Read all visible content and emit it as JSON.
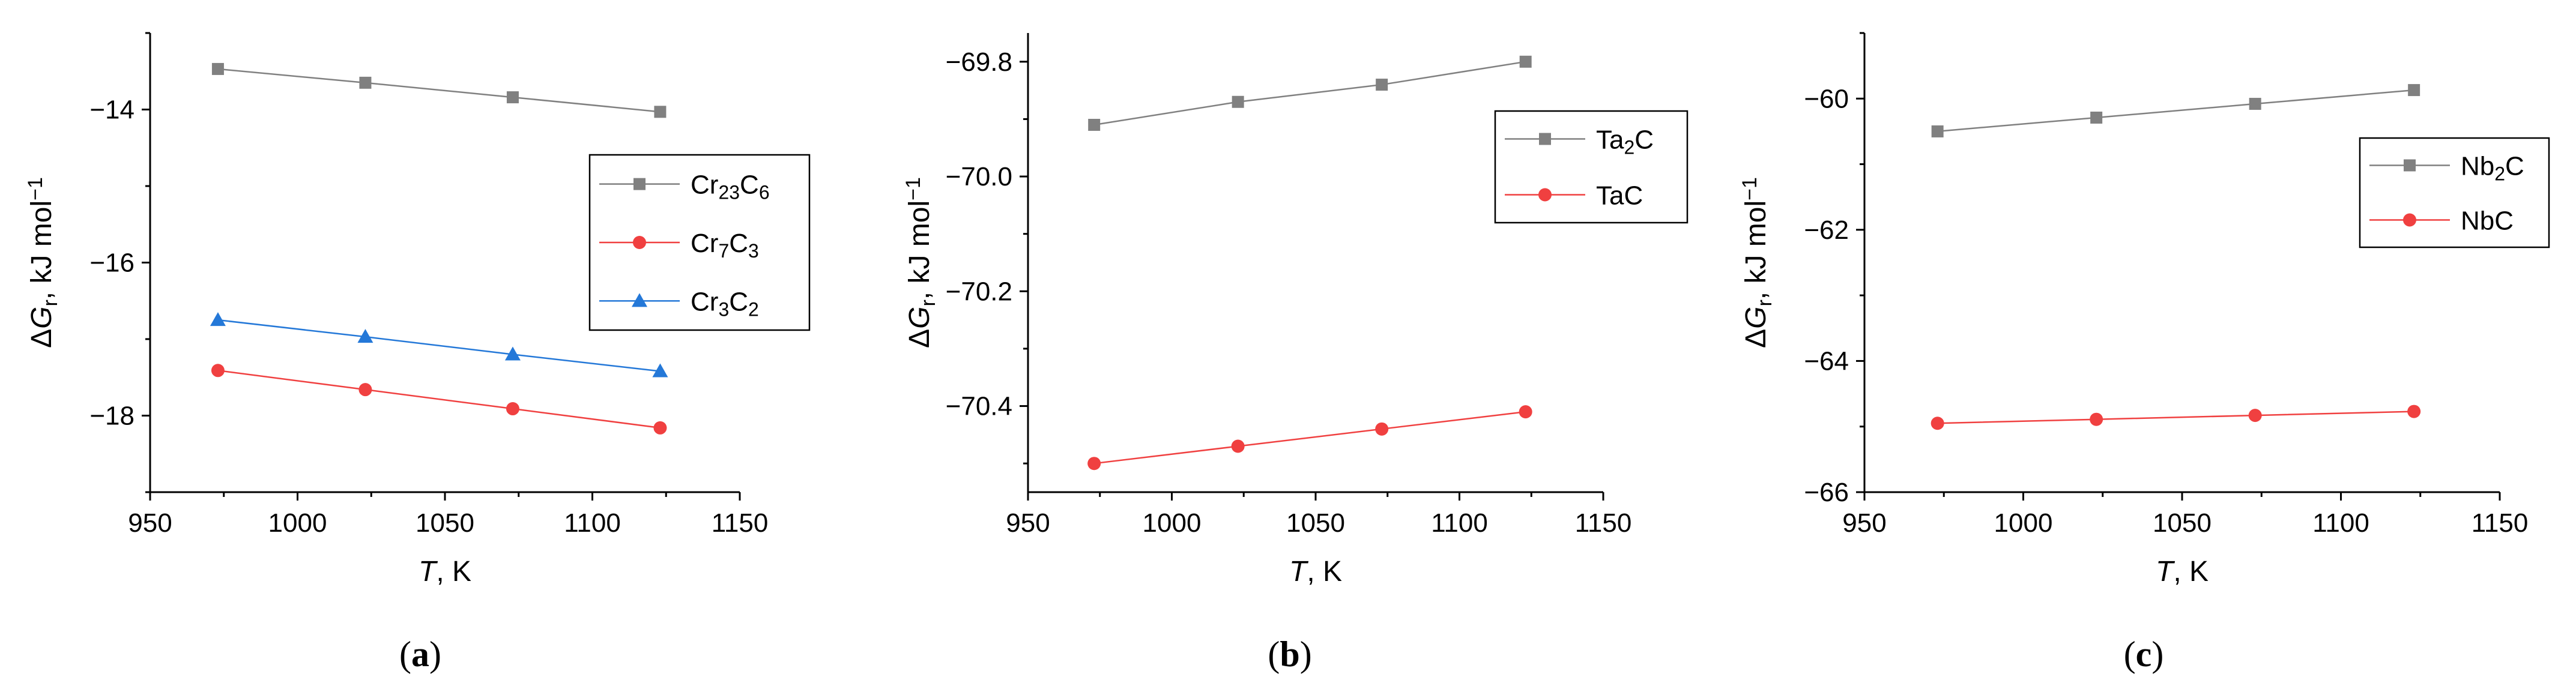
{
  "figure": {
    "panels": [
      "a",
      "b",
      "c"
    ]
  },
  "chart_data": [
    {
      "type": "line",
      "panel_label": "(a)",
      "panel_label_parts": {
        "open": "(",
        "letter": "a",
        "close": ")"
      },
      "xlabel": {
        "italic": "T",
        "rest": ", K"
      },
      "ylabel": {
        "delta": "Δ",
        "italic": "G",
        "sub": "r",
        "rest": ", kJ mol",
        "sup": "−1"
      },
      "xlim": [
        950,
        1150
      ],
      "ylim": [
        -19,
        -13
      ],
      "xticks": [
        950,
        1000,
        1050,
        1100,
        1150
      ],
      "yticks": [
        -18,
        -16,
        -14
      ],
      "ytick_labels": [
        "−18",
        "−16",
        "−14"
      ],
      "x": [
        973,
        1023,
        1073,
        1123
      ],
      "legend_position": "center-right",
      "series": [
        {
          "name": "Cr23C6",
          "label_parts": [
            {
              "t": "Cr"
            },
            {
              "t": "23",
              "sub": true
            },
            {
              "t": "C"
            },
            {
              "t": "6",
              "sub": true
            }
          ],
          "color": "#808080",
          "marker": "square",
          "values": [
            -13.47,
            -13.65,
            -13.84,
            -14.03
          ]
        },
        {
          "name": "Cr7C3",
          "label_parts": [
            {
              "t": "Cr"
            },
            {
              "t": "7",
              "sub": true
            },
            {
              "t": "C"
            },
            {
              "t": "3",
              "sub": true
            }
          ],
          "color": "#f04040",
          "marker": "circle",
          "values": [
            -17.41,
            -17.66,
            -17.91,
            -18.16
          ]
        },
        {
          "name": "Cr3C2",
          "label_parts": [
            {
              "t": "Cr"
            },
            {
              "t": "3",
              "sub": true
            },
            {
              "t": "C"
            },
            {
              "t": "2",
              "sub": true
            }
          ],
          "color": "#2478d8",
          "marker": "triangle",
          "values": [
            -16.75,
            -16.97,
            -17.2,
            -17.42
          ]
        }
      ]
    },
    {
      "type": "line",
      "panel_label": "(b)",
      "panel_label_parts": {
        "open": "(",
        "letter": "b",
        "close": ")"
      },
      "xlabel": {
        "italic": "T",
        "rest": ", K"
      },
      "ylabel": {
        "delta": "Δ",
        "italic": "G",
        "sub": "r",
        "rest": ", kJ mol",
        "sup": "−1"
      },
      "xlim": [
        950,
        1150
      ],
      "ylim": [
        -70.55,
        -69.75
      ],
      "xticks": [
        950,
        1000,
        1050,
        1100,
        1150
      ],
      "yticks": [
        -70.4,
        -70.2,
        -70.0,
        -69.8
      ],
      "ytick_labels": [
        "−70.4",
        "−70.2",
        "−70.0",
        "−69.8"
      ],
      "x": [
        973,
        1023,
        1073,
        1123
      ],
      "legend_position": "upper-right",
      "series": [
        {
          "name": "Ta2C",
          "label_parts": [
            {
              "t": "Ta"
            },
            {
              "t": "2",
              "sub": true
            },
            {
              "t": "C"
            }
          ],
          "color": "#808080",
          "marker": "square",
          "values": [
            -69.91,
            -69.87,
            -69.84,
            -69.8
          ]
        },
        {
          "name": "TaC",
          "label_parts": [
            {
              "t": "TaC"
            }
          ],
          "color": "#f04040",
          "marker": "circle",
          "values": [
            -70.5,
            -70.47,
            -70.44,
            -70.41
          ]
        }
      ]
    },
    {
      "type": "line",
      "panel_label": "(c)",
      "panel_label_parts": {
        "open": "(",
        "letter": "c",
        "close": ")"
      },
      "xlabel": {
        "italic": "T",
        "rest": ", K"
      },
      "ylabel": {
        "delta": "Δ",
        "italic": "G",
        "sub": "r",
        "rest": ", kJ mol",
        "sup": "−1"
      },
      "xlim": [
        950,
        1150
      ],
      "ylim": [
        -66,
        -59
      ],
      "xticks": [
        950,
        1000,
        1050,
        1100,
        1150
      ],
      "yticks": [
        -66,
        -64,
        -62,
        -60
      ],
      "ytick_labels": [
        "−66",
        "−64",
        "−62",
        "−60"
      ],
      "x": [
        973,
        1023,
        1073,
        1123
      ],
      "legend_position": "upper-right",
      "series": [
        {
          "name": "Nb2C",
          "label_parts": [
            {
              "t": "Nb"
            },
            {
              "t": "2",
              "sub": true
            },
            {
              "t": "C"
            }
          ],
          "color": "#808080",
          "marker": "square",
          "values": [
            -60.5,
            -60.29,
            -60.08,
            -59.87
          ]
        },
        {
          "name": "NbC",
          "label_parts": [
            {
              "t": "NbC"
            }
          ],
          "color": "#f04040",
          "marker": "circle",
          "values": [
            -64.95,
            -64.89,
            -64.83,
            -64.77
          ]
        }
      ]
    }
  ]
}
